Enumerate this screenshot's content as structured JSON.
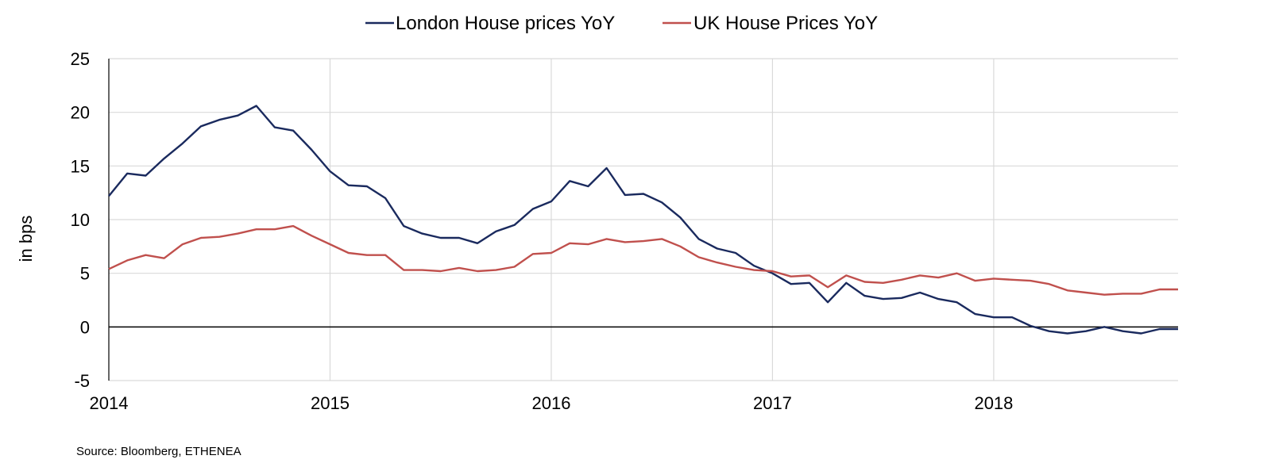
{
  "chart_data": {
    "type": "line",
    "title": "",
    "xlabel": "",
    "ylabel": "in bps",
    "ylim": [
      -5,
      25
    ],
    "yticks": [
      -5,
      0,
      5,
      10,
      15,
      20,
      25
    ],
    "xlim": [
      "2014-01",
      "2018-11"
    ],
    "xticks": [
      "2014",
      "2015",
      "2016",
      "2017",
      "2018"
    ],
    "grid": true,
    "legend_position": "top-center",
    "series": [
      {
        "name": "London House prices YoY",
        "color": "#1a2a5e",
        "x": [
          "2014-01",
          "2014-02",
          "2014-03",
          "2014-04",
          "2014-05",
          "2014-06",
          "2014-07",
          "2014-08",
          "2014-09",
          "2014-10",
          "2014-11",
          "2014-12",
          "2015-01",
          "2015-02",
          "2015-03",
          "2015-04",
          "2015-05",
          "2015-06",
          "2015-07",
          "2015-08",
          "2015-09",
          "2015-10",
          "2015-11",
          "2015-12",
          "2016-01",
          "2016-02",
          "2016-03",
          "2016-04",
          "2016-05",
          "2016-06",
          "2016-07",
          "2016-08",
          "2016-09",
          "2016-10",
          "2016-11",
          "2016-12",
          "2017-01",
          "2017-02",
          "2017-03",
          "2017-04",
          "2017-05",
          "2017-06",
          "2017-07",
          "2017-08",
          "2017-09",
          "2017-10",
          "2017-11",
          "2017-12",
          "2018-01",
          "2018-02",
          "2018-03",
          "2018-04",
          "2018-05",
          "2018-06",
          "2018-07",
          "2018-08",
          "2018-09",
          "2018-10",
          "2018-11"
        ],
        "values": [
          12.2,
          14.3,
          14.1,
          15.7,
          17.1,
          18.7,
          19.3,
          19.7,
          20.6,
          18.6,
          18.3,
          16.5,
          14.5,
          13.2,
          13.1,
          12.0,
          9.4,
          8.7,
          8.3,
          8.3,
          7.8,
          8.9,
          9.5,
          11.0,
          11.7,
          13.6,
          13.1,
          14.8,
          12.3,
          12.4,
          11.6,
          10.2,
          8.2,
          7.3,
          6.9,
          5.7,
          5.0,
          4.0,
          4.1,
          2.3,
          4.1,
          2.9,
          2.6,
          2.7,
          3.2,
          2.6,
          2.3,
          1.2,
          0.9,
          0.9,
          0.1,
          -0.4,
          -0.6,
          -0.4,
          0.0,
          -0.4,
          -0.6,
          -0.2,
          -0.2
        ]
      },
      {
        "name": "UK House Prices YoY",
        "color": "#c0504d",
        "x": [
          "2014-01",
          "2014-02",
          "2014-03",
          "2014-04",
          "2014-05",
          "2014-06",
          "2014-07",
          "2014-08",
          "2014-09",
          "2014-10",
          "2014-11",
          "2014-12",
          "2015-01",
          "2015-02",
          "2015-03",
          "2015-04",
          "2015-05",
          "2015-06",
          "2015-07",
          "2015-08",
          "2015-09",
          "2015-10",
          "2015-11",
          "2015-12",
          "2016-01",
          "2016-02",
          "2016-03",
          "2016-04",
          "2016-05",
          "2016-06",
          "2016-07",
          "2016-08",
          "2016-09",
          "2016-10",
          "2016-11",
          "2016-12",
          "2017-01",
          "2017-02",
          "2017-03",
          "2017-04",
          "2017-05",
          "2017-06",
          "2017-07",
          "2017-08",
          "2017-09",
          "2017-10",
          "2017-11",
          "2017-12",
          "2018-01",
          "2018-02",
          "2018-03",
          "2018-04",
          "2018-05",
          "2018-06",
          "2018-07",
          "2018-08",
          "2018-09",
          "2018-10",
          "2018-11"
        ],
        "values": [
          5.4,
          6.2,
          6.7,
          6.4,
          7.7,
          8.3,
          8.4,
          8.7,
          9.1,
          9.1,
          9.4,
          8.5,
          7.7,
          6.9,
          6.7,
          6.7,
          5.3,
          5.3,
          5.2,
          5.5,
          5.2,
          5.3,
          5.6,
          6.8,
          6.9,
          7.8,
          7.7,
          8.2,
          7.9,
          8.0,
          8.2,
          7.5,
          6.5,
          6.0,
          5.6,
          5.3,
          5.2,
          4.7,
          4.8,
          3.7,
          4.8,
          4.2,
          4.1,
          4.4,
          4.8,
          4.6,
          5.0,
          4.3,
          4.5,
          4.4,
          4.3,
          4.0,
          3.4,
          3.2,
          3.0,
          3.1,
          3.1,
          3.5,
          3.5
        ]
      }
    ]
  },
  "source": "Source: Bloomberg, ETHENEA"
}
